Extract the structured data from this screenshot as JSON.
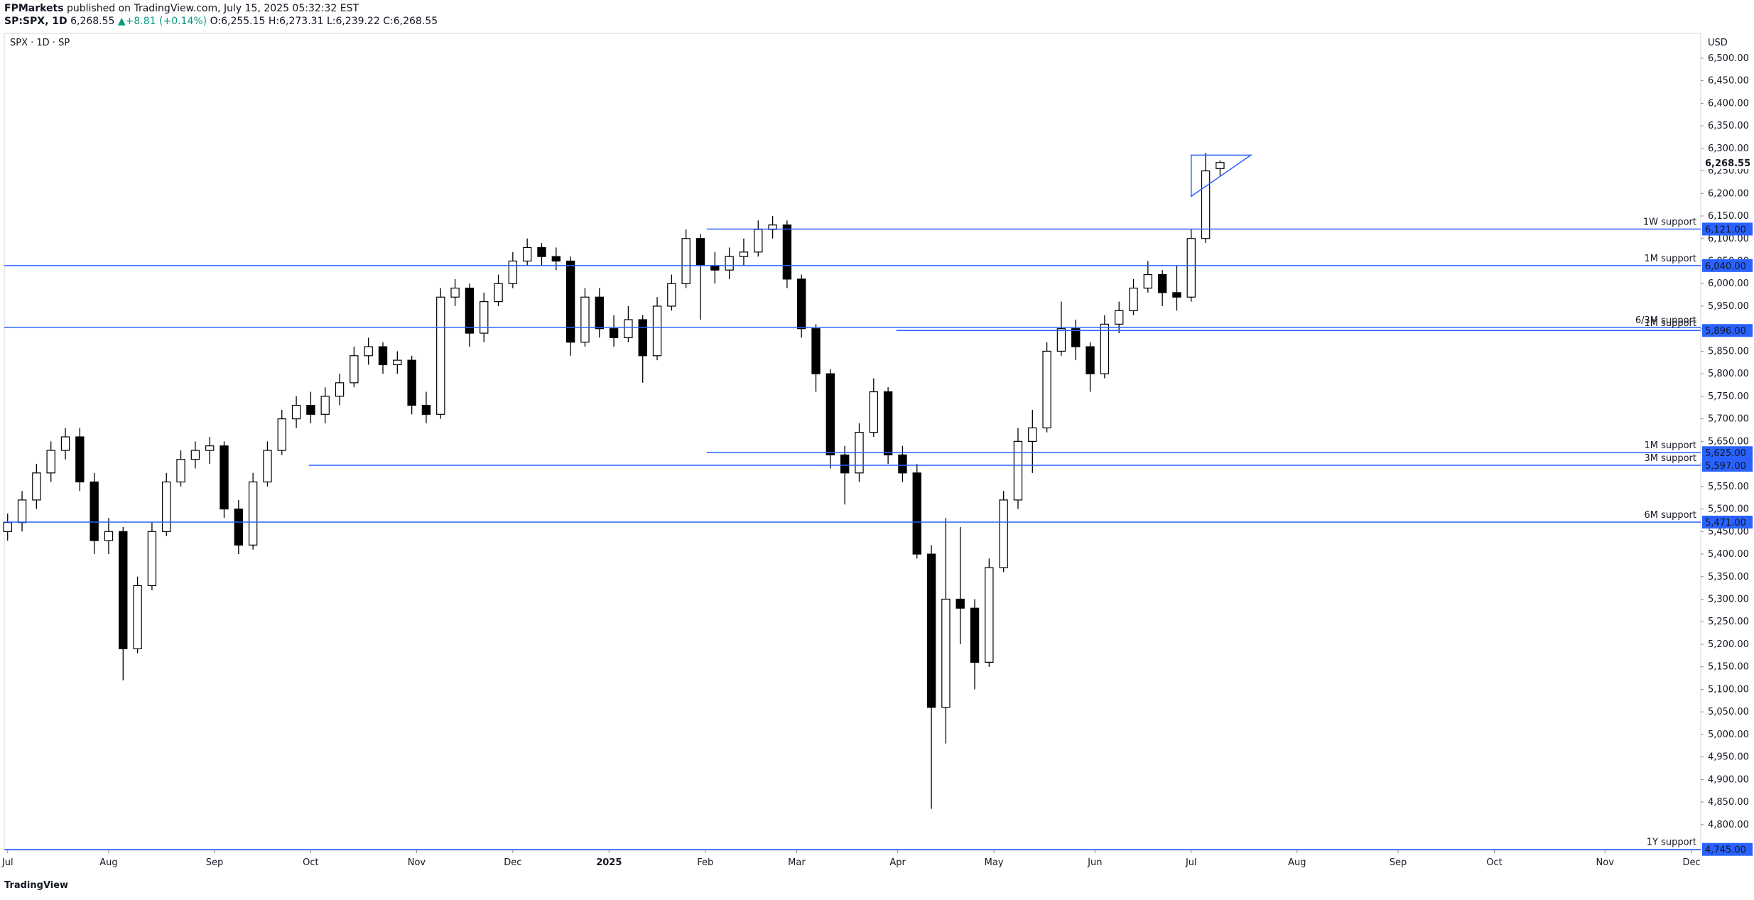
{
  "header": {
    "publisher": "FPMarkets",
    "published": "published on TradingView.com, July 15, 2025 05:32:32 EST",
    "symbol": "SP:SPX, 1D",
    "last": "6,268.55",
    "change": "▲+8.81 (+0.14%)",
    "open": "O:6,255.15",
    "high": "H:6,273.31",
    "low": "L:6,239.22",
    "close": "C:6,268.55"
  },
  "footer": {
    "brand": "TradingView"
  },
  "chart_data": {
    "type": "candlestick",
    "title": "SPX · 1D · SP",
    "currency": "USD",
    "up_color": "#ffffff",
    "down_color": "#000000",
    "line_color": "#2962ff",
    "x": [
      0,
      3,
      6,
      9,
      12,
      15,
      18,
      21,
      24,
      27,
      30,
      33,
      36,
      39,
      42,
      45,
      48,
      51,
      54,
      57,
      60,
      63,
      66,
      69,
      72,
      75,
      78,
      81,
      84,
      87,
      90,
      93,
      96,
      99,
      102,
      105,
      108,
      111,
      114,
      117,
      120,
      123,
      126,
      129,
      132,
      135,
      138,
      141,
      144,
      147,
      150,
      153,
      156,
      159,
      162,
      165,
      168,
      171,
      174,
      177,
      180,
      183,
      186,
      189,
      192,
      195,
      198,
      201,
      204,
      207,
      210,
      213,
      216,
      219,
      222,
      225,
      228,
      231,
      234,
      237,
      240,
      243,
      246,
      249,
      252
    ],
    "open": [
      5450,
      5470,
      5520,
      5580,
      5630,
      5660,
      5560,
      5430,
      5450,
      5190,
      5330,
      5450,
      5560,
      5610,
      5630,
      5640,
      5500,
      5420,
      5560,
      5630,
      5700,
      5730,
      5710,
      5750,
      5780,
      5840,
      5860,
      5820,
      5830,
      5730,
      5710,
      5970,
      5990,
      5890,
      5960,
      6000,
      6050,
      6080,
      6060,
      6050,
      5870,
      5970,
      5900,
      5880,
      5920,
      5840,
      5950,
      6000,
      6100,
      6040,
      6030,
      6060,
      6070,
      6120,
      6130,
      6010,
      5900,
      5800,
      5620,
      5580,
      5670,
      5760,
      5620,
      5580,
      5400,
      5060,
      5300,
      5280,
      5160,
      5370,
      5520,
      5650,
      5680,
      5850,
      5900,
      5860,
      5800,
      5910,
      5940,
      5990,
      6020,
      5980,
      5970,
      6100,
      6255.15
    ],
    "high": [
      5490,
      5540,
      5600,
      5650,
      5680,
      5680,
      5580,
      5480,
      5460,
      5350,
      5470,
      5580,
      5630,
      5650,
      5660,
      5650,
      5520,
      5580,
      5650,
      5720,
      5750,
      5760,
      5770,
      5800,
      5860,
      5880,
      5870,
      5850,
      5840,
      5760,
      5990,
      6010,
      6000,
      5980,
      6020,
      6070,
      6100,
      6090,
      6080,
      6060,
      5990,
      5990,
      5930,
      5950,
      5930,
      5970,
      6020,
      6120,
      6110,
      6070,
      6080,
      6100,
      6140,
      6150,
      6140,
      6020,
      5910,
      5810,
      5640,
      5690,
      5790,
      5770,
      5640,
      5600,
      5420,
      5480,
      5460,
      5300,
      5390,
      5540,
      5680,
      5720,
      5870,
      5960,
      5920,
      5870,
      5930,
      5960,
      6010,
      6050,
      6030,
      6040,
      6120,
      6290,
      6273.31
    ],
    "low": [
      5430,
      5450,
      5500,
      5560,
      5610,
      5540,
      5400,
      5400,
      5120,
      5180,
      5320,
      5440,
      5550,
      5590,
      5600,
      5480,
      5400,
      5410,
      5550,
      5620,
      5680,
      5690,
      5690,
      5730,
      5770,
      5820,
      5800,
      5800,
      5710,
      5690,
      5700,
      5950,
      5860,
      5870,
      5950,
      5990,
      6040,
      6040,
      6030,
      5840,
      5860,
      5880,
      5860,
      5870,
      5780,
      5830,
      5940,
      5990,
      5920,
      6000,
      6010,
      6040,
      6060,
      6100,
      5990,
      5880,
      5760,
      5590,
      5510,
      5560,
      5660,
      5600,
      5560,
      5390,
      4835,
      4980,
      5200,
      5100,
      5150,
      5360,
      5500,
      5580,
      5670,
      5840,
      5830,
      5760,
      5790,
      5890,
      5930,
      5980,
      5950,
      5940,
      5960,
      6090,
      6239.22
    ],
    "close": [
      5470,
      5520,
      5580,
      5630,
      5660,
      5560,
      5430,
      5450,
      5190,
      5330,
      5450,
      5560,
      5610,
      5630,
      5640,
      5500,
      5420,
      5560,
      5630,
      5700,
      5730,
      5710,
      5750,
      5780,
      5840,
      5860,
      5820,
      5830,
      5730,
      5710,
      5970,
      5990,
      5890,
      5960,
      6000,
      6050,
      6080,
      6060,
      6050,
      5870,
      5970,
      5900,
      5880,
      5920,
      5840,
      5950,
      6000,
      6100,
      6040,
      6030,
      6060,
      6070,
      6120,
      6130,
      6010,
      5900,
      5800,
      5620,
      5580,
      5670,
      5760,
      5620,
      5580,
      5400,
      5060,
      5300,
      5280,
      5160,
      5370,
      5520,
      5650,
      5680,
      5850,
      5900,
      5860,
      5800,
      5910,
      5940,
      5990,
      6020,
      5980,
      5970,
      6100,
      6250,
      6268.55
    ],
    "xlim": [
      -0.7,
      351.9
    ],
    "ylim": [
      4743,
      6555
    ],
    "xticks": [
      {
        "value": 0,
        "label": "Jul"
      },
      {
        "value": 21,
        "label": "Aug"
      },
      {
        "value": 43,
        "label": "Sep"
      },
      {
        "value": 63,
        "label": "Oct"
      },
      {
        "value": 85,
        "label": "Nov"
      },
      {
        "value": 105,
        "label": "Dec"
      },
      {
        "value": 125,
        "label": "2025"
      },
      {
        "value": 145,
        "label": "Feb"
      },
      {
        "value": 164,
        "label": "Mar"
      },
      {
        "value": 185,
        "label": "Apr"
      },
      {
        "value": 205,
        "label": "May"
      },
      {
        "value": 226,
        "label": "Jun"
      },
      {
        "value": 246,
        "label": "Jul"
      },
      {
        "value": 268,
        "label": "Aug"
      },
      {
        "value": 289,
        "label": "Sep"
      },
      {
        "value": 309,
        "label": "Oct"
      },
      {
        "value": 332,
        "label": "Nov"
      },
      {
        "value": 350,
        "label": "Dec"
      }
    ],
    "yticks": [
      {
        "value": 4800,
        "label": "4,800.00"
      },
      {
        "value": 4850,
        "label": "4,850.00"
      },
      {
        "value": 4900,
        "label": "4,900.00"
      },
      {
        "value": 4950,
        "label": "4,950.00"
      },
      {
        "value": 5000,
        "label": "5,000.00"
      },
      {
        "value": 5050,
        "label": "5,050.00"
      },
      {
        "value": 5100,
        "label": "5,100.00"
      },
      {
        "value": 5150,
        "label": "5,150.00"
      },
      {
        "value": 5200,
        "label": "5,200.00"
      },
      {
        "value": 5250,
        "label": "5,250.00"
      },
      {
        "value": 5300,
        "label": "5,300.00"
      },
      {
        "value": 5350,
        "label": "5,350.00"
      },
      {
        "value": 5400,
        "label": "5,400.00"
      },
      {
        "value": 5450,
        "label": "5,450.00"
      },
      {
        "value": 5500,
        "label": "5,500.00"
      },
      {
        "value": 5550,
        "label": "5,550.00"
      },
      {
        "value": 5600,
        "label": "5,600.00"
      },
      {
        "value": 5650,
        "label": "5,650.00"
      },
      {
        "value": 5700,
        "label": "5,700.00"
      },
      {
        "value": 5750,
        "label": "5,750.00"
      },
      {
        "value": 5800,
        "label": "5,800.00"
      },
      {
        "value": 5850,
        "label": "5,850.00"
      },
      {
        "value": 5900,
        "label": "5,900.00"
      },
      {
        "value": 5950,
        "label": "5,950.00"
      },
      {
        "value": 6000,
        "label": "6,000.00"
      },
      {
        "value": 6050,
        "label": "6,050.00"
      },
      {
        "value": 6100,
        "label": "6,100.00"
      },
      {
        "value": 6150,
        "label": "6,150.00"
      },
      {
        "value": 6200,
        "label": "6,200.00"
      },
      {
        "value": 6250,
        "label": "6,250.00"
      },
      {
        "value": 6300,
        "label": "6,300.00"
      },
      {
        "value": 6350,
        "label": "6,350.00"
      },
      {
        "value": 6400,
        "label": "6,400.00"
      },
      {
        "value": 6450,
        "label": "6,450.00"
      },
      {
        "value": 6500,
        "label": "6,500.00"
      }
    ],
    "last_price": {
      "value": 6268.55,
      "label": "6,268.55"
    },
    "levels": [
      {
        "name": "1W support",
        "value": 6121,
        "label": "6,121.00",
        "start": 145.3
      },
      {
        "name": "1M support",
        "value": 6040,
        "label": "6,040.00",
        "start": -0.7
      },
      {
        "name": "6/3M support",
        "value": 5903,
        "start": -0.7
      },
      {
        "name": "1M support",
        "value": 5896,
        "label": "5,896.00",
        "start": 184.7
      },
      {
        "name": "1M support",
        "value": 5625,
        "label": "5,625.00",
        "start": 145.3
      },
      {
        "name": "3M support",
        "value": 5597,
        "label": "5,597.00",
        "start": 62.6
      },
      {
        "name": "6M support",
        "value": 5471,
        "label": "5,471.00",
        "start": -0.7
      },
      {
        "name": "1Y support",
        "value": 4745,
        "label": "4,745.00",
        "start": -0.7
      }
    ],
    "triangle": {
      "x": [
        246,
        258.4,
        246
      ],
      "y": [
        6285,
        6285,
        6193.5
      ]
    }
  }
}
